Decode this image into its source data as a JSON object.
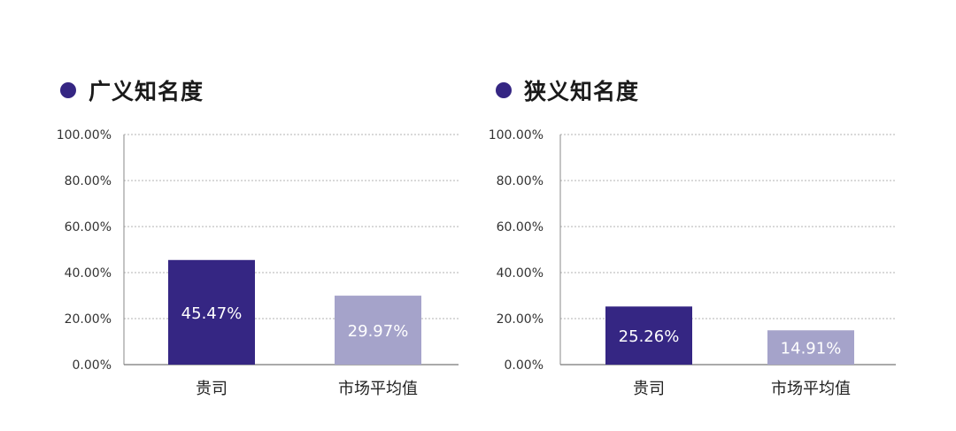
{
  "colors": {
    "accent": "#352683",
    "primary_bar": "#352683",
    "secondary_bar": "#a5a3ca"
  },
  "chart_data": [
    {
      "type": "bar",
      "title": "广义知名度",
      "categories": [
        "贵司",
        "市场平均值"
      ],
      "values": [
        45.47,
        29.97
      ],
      "value_labels": [
        "45.47%",
        "29.97%"
      ],
      "ylim": [
        0,
        100
      ],
      "yticks": [
        "0.00%",
        "20.00%",
        "40.00%",
        "60.00%",
        "80.00%",
        "100.00%"
      ],
      "grid": "dashed horizontal"
    },
    {
      "type": "bar",
      "title": "狭义知名度",
      "categories": [
        "贵司",
        "市场平均值"
      ],
      "values": [
        25.26,
        14.91
      ],
      "value_labels": [
        "25.26%",
        "14.91%"
      ],
      "ylim": [
        0,
        100
      ],
      "yticks": [
        "0.00%",
        "20.00%",
        "40.00%",
        "60.00%",
        "80.00%",
        "100.00%"
      ],
      "grid": "dashed horizontal"
    }
  ]
}
